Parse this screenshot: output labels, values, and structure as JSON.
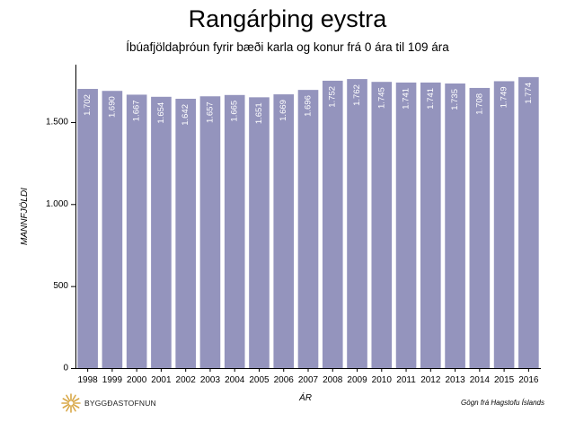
{
  "chart_data": {
    "type": "bar",
    "title": "Rangárþing eystra",
    "subtitle": "Íbúafjöldaþróun fyrir bæði karla og konur frá 0 ára til 109 ára",
    "xlabel": "ÁR",
    "ylabel": "MANNFJÖLDI",
    "categories": [
      "1998",
      "1999",
      "2000",
      "2001",
      "2002",
      "2003",
      "2004",
      "2005",
      "2006",
      "2007",
      "2008",
      "2009",
      "2010",
      "2011",
      "2012",
      "2013",
      "2014",
      "2015",
      "2016"
    ],
    "values": [
      1702,
      1690,
      1667,
      1654,
      1642,
      1657,
      1665,
      1651,
      1669,
      1696,
      1752,
      1762,
      1745,
      1741,
      1741,
      1735,
      1708,
      1749,
      1774
    ],
    "value_labels": [
      "1.702",
      "1.690",
      "1.667",
      "1.654",
      "1.642",
      "1.657",
      "1.665",
      "1.651",
      "1.669",
      "1.696",
      "1.752",
      "1.762",
      "1.745",
      "1.741",
      "1.741",
      "1.735",
      "1.708",
      "1.749",
      "1.774"
    ],
    "yticks": [
      0,
      500,
      1000,
      1500
    ],
    "ytick_labels": [
      "0",
      "500",
      "1.000",
      "1.500"
    ],
    "ylim": [
      0,
      1850
    ],
    "grid": false,
    "bar_color": "#9494bd"
  },
  "source": "Gögn frá Hagstofu Íslands",
  "logo_text": "BYGGÐASTOFNUN",
  "logo_color": "#d9a94a"
}
